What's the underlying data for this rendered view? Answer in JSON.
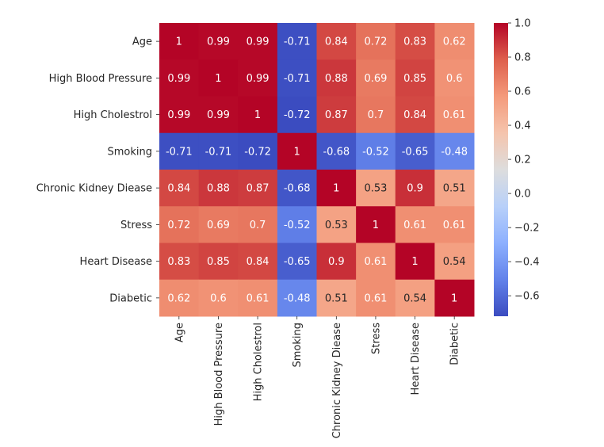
{
  "chart_data": {
    "type": "heatmap",
    "title": "",
    "xlabel": "",
    "ylabel": "",
    "colormap": "coolwarm",
    "labels": [
      "Age",
      "High Blood Pressure",
      "High Cholestrol",
      "Smoking",
      "Chronic Kidney Diease",
      "Stress",
      "Heart Disease",
      "Diabetic"
    ],
    "values": [
      [
        1,
        0.99,
        0.99,
        -0.71,
        0.84,
        0.72,
        0.83,
        0.62
      ],
      [
        0.99,
        1,
        0.99,
        -0.71,
        0.88,
        0.69,
        0.85,
        0.6
      ],
      [
        0.99,
        0.99,
        1,
        -0.72,
        0.87,
        0.7,
        0.84,
        0.61
      ],
      [
        -0.71,
        -0.71,
        -0.72,
        1,
        -0.68,
        -0.52,
        -0.65,
        -0.48
      ],
      [
        0.84,
        0.88,
        0.87,
        -0.68,
        1,
        0.53,
        0.9,
        0.51
      ],
      [
        0.72,
        0.69,
        0.7,
        -0.52,
        0.53,
        1,
        0.61,
        0.61
      ],
      [
        0.83,
        0.85,
        0.84,
        -0.65,
        0.9,
        0.61,
        1,
        0.54
      ],
      [
        0.62,
        0.6,
        0.61,
        -0.48,
        0.51,
        0.61,
        0.54,
        1
      ]
    ],
    "colorbar": {
      "range": [
        -0.72,
        1.0
      ],
      "ticks": [
        "1.0",
        "0.8",
        "0.6",
        "0.4",
        "0.2",
        "0.0",
        "−0.2",
        "−0.4",
        "−0.6"
      ],
      "tick_values": [
        1.0,
        0.8,
        0.6,
        0.4,
        0.2,
        0.0,
        -0.2,
        -0.4,
        -0.6
      ]
    }
  }
}
